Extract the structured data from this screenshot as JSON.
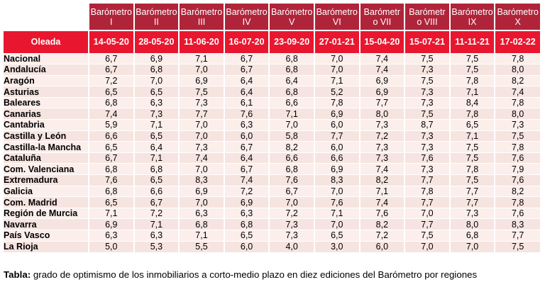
{
  "table": {
    "header_label": "Oleada",
    "editions": [
      "Barómetro I",
      "Barómetro II",
      "Barómetro III",
      "Barómetro IV",
      "Barómetro V",
      "Barómetro VI",
      "Barómetr o VII",
      "Barómetr o VIII",
      "Barómetro IX",
      "Barómetro X"
    ],
    "edition_lines": [
      [
        "Barómetro",
        "I"
      ],
      [
        "Barómetro",
        "II"
      ],
      [
        "Barómetro",
        "III"
      ],
      [
        "Barómetro",
        "IV"
      ],
      [
        "Barómetro",
        "V"
      ],
      [
        "Barómetro",
        "VI"
      ],
      [
        "Barómetr",
        "o VII"
      ],
      [
        "Barómetr",
        "o VIII"
      ],
      [
        "Barómetro",
        "IX"
      ],
      [
        "Barómetro",
        "X"
      ]
    ],
    "dates": [
      "14-05-20",
      "28-05-20",
      "11-06-20",
      "16-07-20",
      "23-09-20",
      "27-01-21",
      "15-04-20",
      "15-07-21",
      "11-11-21",
      "17-02-22"
    ],
    "rows": [
      {
        "region": "Nacional",
        "values": [
          "6,7",
          "6,9",
          "7,1",
          "6,7",
          "6,8",
          "7,0",
          "7,4",
          "7,5",
          "7,5",
          "7,8"
        ]
      },
      {
        "region": "Andalucía",
        "values": [
          "6,7",
          "6,8",
          "7,0",
          "6,7",
          "6,8",
          "7,0",
          "7,4",
          "7,3",
          "7,5",
          "8,0"
        ]
      },
      {
        "region": "Aragón",
        "values": [
          "7,2",
          "7,0",
          "6,9",
          "6,4",
          "6,4",
          "7,1",
          "6,9",
          "7,5",
          "7,8",
          "8,2"
        ]
      },
      {
        "region": "Asturias",
        "values": [
          "6,5",
          "6,5",
          "7,5",
          "6,4",
          "6,8",
          "5,2",
          "6,9",
          "7,3",
          "7,1",
          "7,4"
        ]
      },
      {
        "region": "Baleares",
        "values": [
          "6,8",
          "6,3",
          "7,3",
          "6,1",
          "6,6",
          "7,8",
          "7,7",
          "7,3",
          "8,4",
          "7,8"
        ]
      },
      {
        "region": "Canarias",
        "values": [
          "7,4",
          "7,3",
          "7,7",
          "7,6",
          "7,1",
          "6,9",
          "8,0",
          "7,5",
          "7,8",
          "8,0"
        ]
      },
      {
        "region": "Cantabria",
        "values": [
          "5,9",
          "7,1",
          "7,0",
          "6,3",
          "7,0",
          "6,0",
          "7,3",
          "8,7",
          "6,5",
          "7,3"
        ]
      },
      {
        "region": "Castilla y León",
        "values": [
          "6,6",
          "6,5",
          "7,0",
          "6,0",
          "5,8",
          "7,7",
          "7,2",
          "7,3",
          "7,1",
          "7,5"
        ]
      },
      {
        "region": "Castilla-la Mancha",
        "values": [
          "6,5",
          "6,4",
          "7,3",
          "6,7",
          "8,2",
          "6,0",
          "7,3",
          "7,3",
          "7,5",
          "7,8"
        ]
      },
      {
        "region": "Cataluña",
        "values": [
          "6,7",
          "7,1",
          "7,4",
          "6,4",
          "6,6",
          "6,6",
          "7,3",
          "7,6",
          "7,5",
          "7,6"
        ]
      },
      {
        "region": "Com. Valenciana",
        "values": [
          "6,8",
          "6,8",
          "7,0",
          "6,7",
          "6,8",
          "6,9",
          "7,4",
          "7,3",
          "7,8",
          "7,9"
        ]
      },
      {
        "region": "Extremadura",
        "values": [
          "7,6",
          "6,5",
          "8,3",
          "7,4",
          "7,6",
          "8,3",
          "8,2",
          "7,7",
          "7,5",
          "7,6"
        ]
      },
      {
        "region": "Galicia",
        "values": [
          "6,8",
          "6,6",
          "6,9",
          "7,2",
          "6,7",
          "7,0",
          "7,1",
          "7,8",
          "7,7",
          "8,2"
        ]
      },
      {
        "region": "Com. Madrid",
        "values": [
          "6,5",
          "6,7",
          "7,0",
          "6,9",
          "7,0",
          "7,6",
          "7,4",
          "7,7",
          "7,7",
          "7,8"
        ]
      },
      {
        "region": "Región de Murcia",
        "values": [
          "7,1",
          "7,2",
          "6,3",
          "6,3",
          "7,2",
          "7,1",
          "7,6",
          "7,0",
          "7,3",
          "7,6"
        ]
      },
      {
        "region": "Navarra",
        "values": [
          "6,9",
          "7,1",
          "6,8",
          "6,8",
          "7,3",
          "7,0",
          "8,2",
          "7,7",
          "8,0",
          "8,3"
        ]
      },
      {
        "region": "País Vasco",
        "values": [
          "6,3",
          "6,3",
          "7,1",
          "6,5",
          "7,3",
          "6,5",
          "7,2",
          "7,5",
          "6,8",
          "7,7"
        ]
      },
      {
        "region": "La Rioja",
        "values": [
          "5,0",
          "5,3",
          "5,5",
          "6,0",
          "4,0",
          "3,0",
          "6,0",
          "7,0",
          "7,0",
          "7,5"
        ]
      }
    ]
  },
  "caption": {
    "label": "Tabla:",
    "text": " grado de optimismo de los inmobiliarios a corto-medio plazo en diez ediciones del Barómetro por regiones"
  },
  "colors": {
    "header_bg": "#b0243a",
    "subheader_bg": "#e8172f",
    "row_bg": "#f6e4e0",
    "row_alt_bg": "#fbeeeb"
  }
}
